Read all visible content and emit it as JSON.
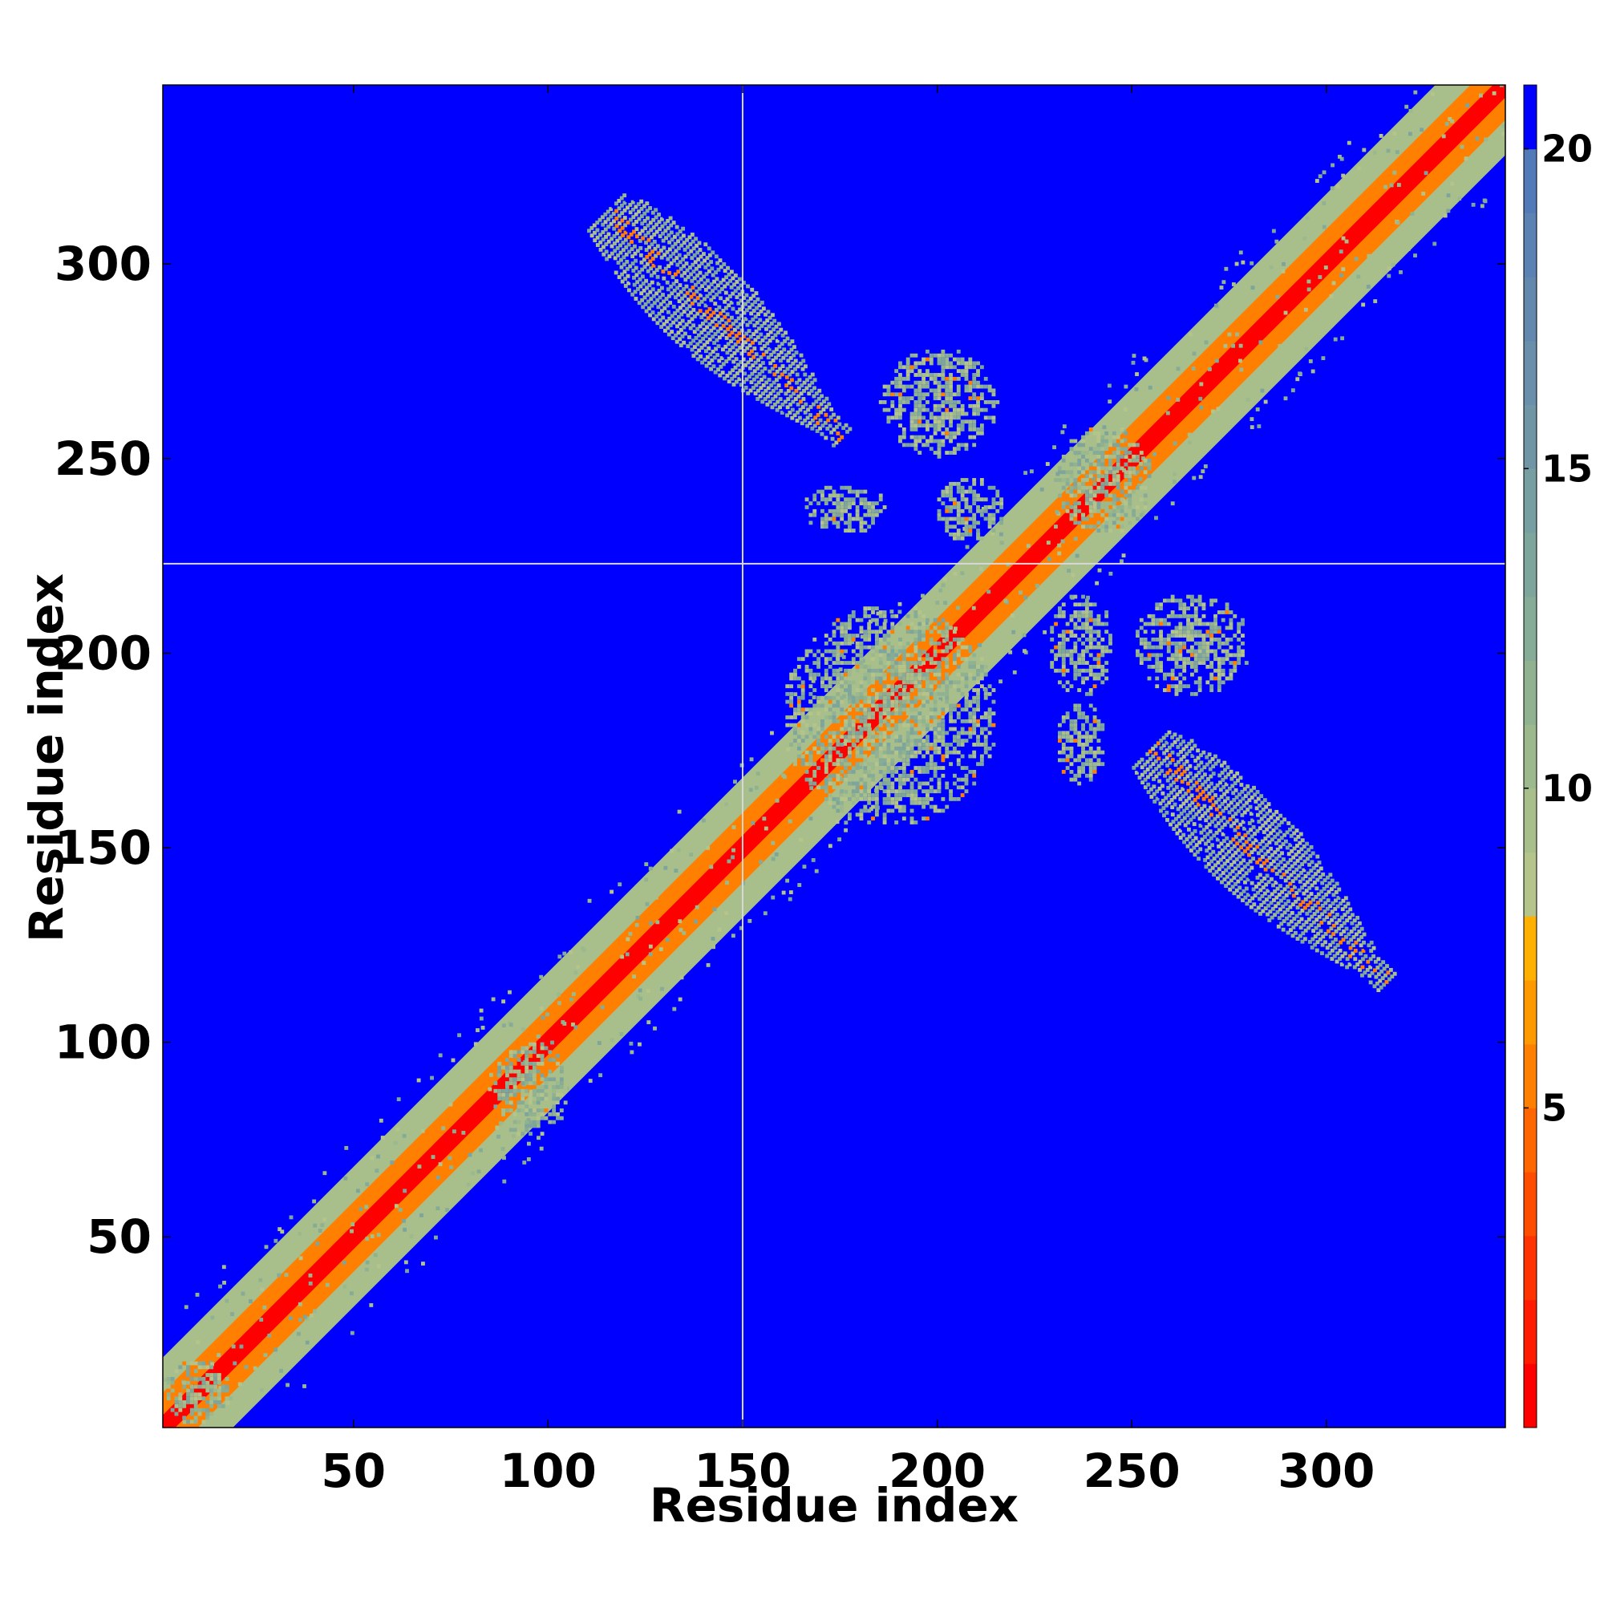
{
  "chart_data": {
    "type": "heatmap",
    "title": "",
    "xlabel": "Residue index",
    "ylabel": "Residue index",
    "xlim": [
      1,
      346
    ],
    "ylim": [
      1,
      346
    ],
    "x_ticks": [
      50,
      100,
      150,
      200,
      250,
      300
    ],
    "y_ticks": [
      50,
      100,
      150,
      200,
      250,
      300
    ],
    "guide_lines": {
      "x": 150,
      "y": 223
    },
    "guide_line_color": "#d8d8d8",
    "background_color": "#0000ff",
    "colorbar": {
      "ticks": [
        5,
        10,
        15,
        20
      ],
      "range": [
        0,
        21
      ],
      "levels": [
        {
          "max": 1,
          "color": "#ff0000"
        },
        {
          "max": 2,
          "color": "#ff1a00"
        },
        {
          "max": 3,
          "color": "#ff3300"
        },
        {
          "max": 4,
          "color": "#ff4d00"
        },
        {
          "max": 5,
          "color": "#ff6600"
        },
        {
          "max": 6,
          "color": "#ff8000"
        },
        {
          "max": 7,
          "color": "#ff9900"
        },
        {
          "max": 8,
          "color": "#ffb000"
        },
        {
          "max": 9,
          "color": "#b4c48a"
        },
        {
          "max": 10,
          "color": "#a8bf8c"
        },
        {
          "max": 11,
          "color": "#9cb98e"
        },
        {
          "max": 12,
          "color": "#90b290"
        },
        {
          "max": 13,
          "color": "#86ab96"
        },
        {
          "max": 14,
          "color": "#7ea59b"
        },
        {
          "max": 15,
          "color": "#779ea0"
        },
        {
          "max": 16,
          "color": "#7096a5"
        },
        {
          "max": 17,
          "color": "#698faa"
        },
        {
          "max": 18,
          "color": "#6288ae"
        },
        {
          "max": 19,
          "color": "#5b82b3"
        },
        {
          "max": 20,
          "color": "#537ab8"
        },
        {
          "max": 21,
          "color": "#0000ff"
        }
      ]
    },
    "contact_regions": [
      {
        "kind": "diagonal",
        "from": 1,
        "to": 346,
        "core_color": "#ff0000",
        "halo_color": "#ff8000",
        "band_color": "#a8bf8c"
      },
      {
        "kind": "antiparallel",
        "x_from": 115,
        "x_to": 175,
        "y_from": 313,
        "y_to": 255,
        "color": "#a8bf8c",
        "hot_color": "#ff8000"
      },
      {
        "kind": "antiparallel",
        "x_from": 255,
        "x_to": 315,
        "y_from": 175,
        "y_to": 115,
        "color": "#a8bf8c",
        "hot_color": "#ff8000"
      },
      {
        "kind": "patch",
        "x": [
          160,
          215
        ],
        "y": [
          155,
          212
        ],
        "color": "#a8bf8c"
      },
      {
        "kind": "patch",
        "x": [
          185,
          215
        ],
        "y": [
          250,
          278
        ],
        "color": "#a8bf8c"
      },
      {
        "kind": "patch",
        "x": [
          165,
          187
        ],
        "y": [
          230,
          243
        ],
        "color": "#a8bf8c"
      },
      {
        "kind": "patch",
        "x": [
          198,
          217
        ],
        "y": [
          228,
          245
        ],
        "color": "#a8bf8c"
      },
      {
        "kind": "patch",
        "x": [
          228,
          245
        ],
        "y": [
          188,
          215
        ],
        "color": "#a8bf8c"
      },
      {
        "kind": "patch",
        "x": [
          250,
          280
        ],
        "y": [
          188,
          215
        ],
        "color": "#a8bf8c"
      },
      {
        "kind": "patch",
        "x": [
          230,
          243
        ],
        "y": [
          165,
          187
        ],
        "color": "#a8bf8c"
      },
      {
        "kind": "patch",
        "x": [
          230,
          255
        ],
        "y": [
          230,
          258
        ],
        "color": "#a8bf8c"
      },
      {
        "kind": "patch",
        "x": [
          85,
          105
        ],
        "y": [
          75,
          100
        ],
        "color": "#a8bf8c"
      },
      {
        "kind": "patch",
        "x": [
          1,
          18
        ],
        "y": [
          1,
          18
        ],
        "color": "#a8bf8c"
      }
    ]
  }
}
